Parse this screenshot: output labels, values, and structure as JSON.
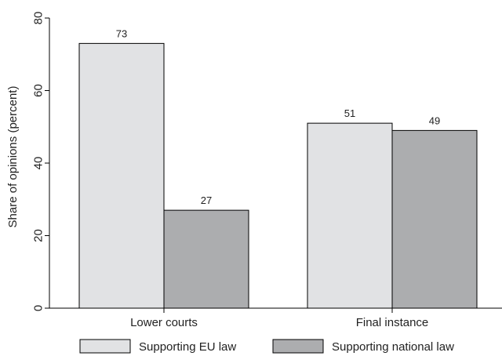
{
  "chart_data": {
    "type": "bar",
    "categories": [
      "Lower courts",
      "Final instance"
    ],
    "series": [
      {
        "name": "Supporting EU law",
        "values": [
          73,
          51
        ],
        "labels": [
          "73",
          "51"
        ],
        "color": "#e1e2e4"
      },
      {
        "name": "Supporting national law",
        "values": [
          27,
          49
        ],
        "labels": [
          "27",
          "49"
        ],
        "color": "#acadaf"
      }
    ],
    "ylabel": "Share of opinions (percent)",
    "ylim": [
      0,
      80
    ],
    "yticks": [
      "0",
      "20",
      "40",
      "60",
      "80"
    ],
    "grid": false,
    "legend_position": "bottom"
  }
}
